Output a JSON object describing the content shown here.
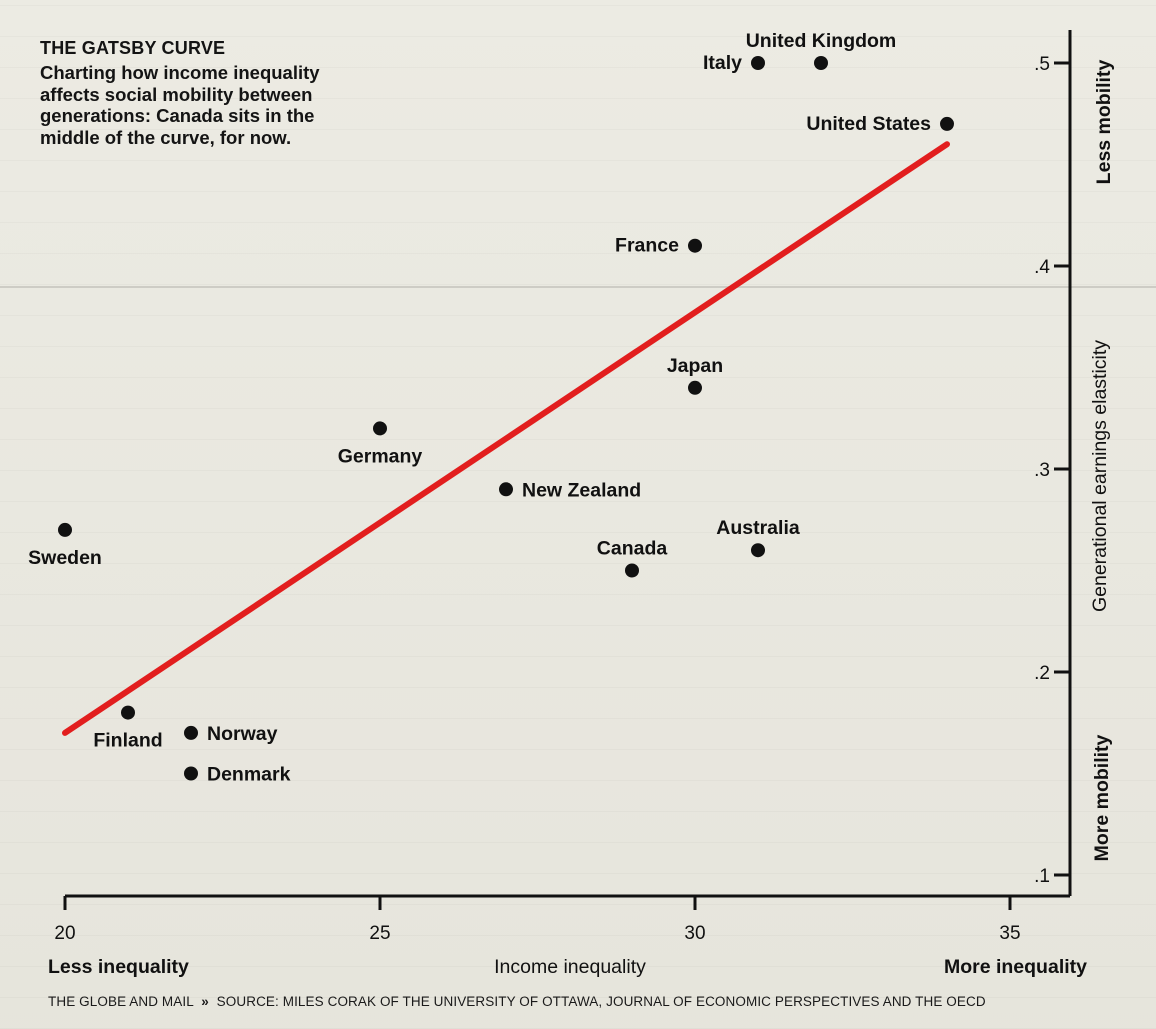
{
  "title": "THE GATSBY CURVE",
  "subtitle": "Charting how income inequality affects social mobility between generations: Canada sits in the middle of the curve, for now.",
  "footer": {
    "publisher": "THE GLOBE AND MAIL",
    "separator": "»",
    "source": "SOURCE: MILES CORAK OF THE UNIVERSITY OF OTTAWA, JOURNAL OF ECONOMIC PERSPECTIVES AND THE OECD"
  },
  "colors": {
    "trend_line": "#e21e1e",
    "points": "#111111",
    "axes": "#111111",
    "background": "#ecebe3"
  },
  "chart_data": {
    "type": "scatter",
    "title": "THE GATSBY CURVE",
    "xlabel": "Income inequality",
    "ylabel": "Generational earnings elasticity",
    "x_end_labels": {
      "left": "Less inequality",
      "right": "More inequality"
    },
    "y_end_labels": {
      "top": "Less mobility",
      "bottom": "More mobility"
    },
    "xlim": [
      20,
      37
    ],
    "ylim": [
      0.09,
      0.53
    ],
    "xticks": [
      20,
      25,
      30,
      35
    ],
    "xtick_labels": [
      "20",
      "25",
      "30",
      "35"
    ],
    "yticks": [
      0.1,
      0.2,
      0.3,
      0.4,
      0.5
    ],
    "ytick_labels": [
      ".1",
      ".2",
      ".3",
      ".4",
      ".5"
    ],
    "grid": false,
    "points": [
      {
        "label": "United Kingdom",
        "x": 32.0,
        "y": 0.5,
        "anchor": "above"
      },
      {
        "label": "Italy",
        "x": 31.0,
        "y": 0.5,
        "anchor": "left"
      },
      {
        "label": "United States",
        "x": 34.0,
        "y": 0.47,
        "anchor": "left"
      },
      {
        "label": "France",
        "x": 30.0,
        "y": 0.41,
        "anchor": "left"
      },
      {
        "label": "Japan",
        "x": 30.0,
        "y": 0.34,
        "anchor": "above"
      },
      {
        "label": "Germany",
        "x": 25.0,
        "y": 0.32,
        "anchor": "below"
      },
      {
        "label": "New Zealand",
        "x": 27.0,
        "y": 0.29,
        "anchor": "right"
      },
      {
        "label": "Australia",
        "x": 31.0,
        "y": 0.26,
        "anchor": "above"
      },
      {
        "label": "Canada",
        "x": 29.0,
        "y": 0.25,
        "anchor": "above"
      },
      {
        "label": "Sweden",
        "x": 20.0,
        "y": 0.27,
        "anchor": "below"
      },
      {
        "label": "Finland",
        "x": 21.0,
        "y": 0.18,
        "anchor": "below"
      },
      {
        "label": "Norway",
        "x": 22.0,
        "y": 0.17,
        "anchor": "right"
      },
      {
        "label": "Denmark",
        "x": 22.0,
        "y": 0.15,
        "anchor": "right"
      }
    ],
    "trend_line": {
      "x": [
        20,
        34
      ],
      "y": [
        0.17,
        0.46
      ]
    }
  }
}
